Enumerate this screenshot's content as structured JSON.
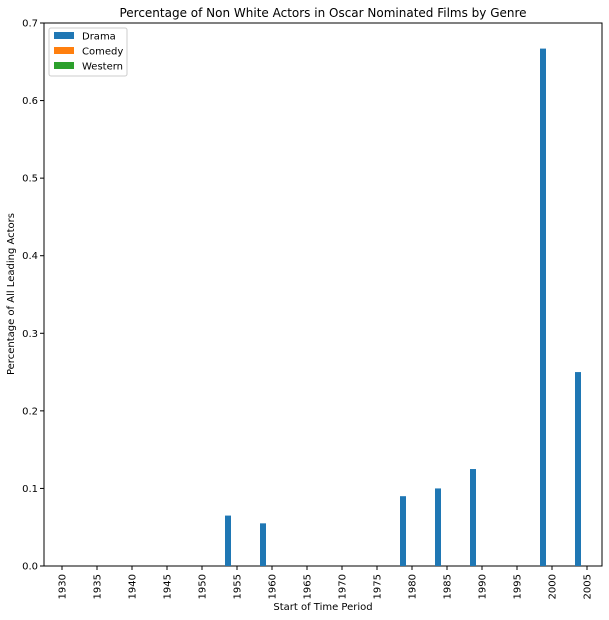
{
  "chart_data": {
    "type": "bar",
    "title": "Percentage of Non White Actors in Oscar Nominated Films by Genre",
    "xlabel": "Start of Time Period",
    "ylabel": "Percentage of All Leading Actors",
    "categories": [
      "1930",
      "1935",
      "1940",
      "1945",
      "1950",
      "1955",
      "1960",
      "1965",
      "1970",
      "1975",
      "1980",
      "1985",
      "1990",
      "1995",
      "2000",
      "2005"
    ],
    "ylim": [
      0,
      0.7
    ],
    "yticks": [
      "0.0",
      "0.1",
      "0.2",
      "0.3",
      "0.4",
      "0.5",
      "0.6",
      "0.7"
    ],
    "grid": false,
    "legend_position": "top-left",
    "series": [
      {
        "name": "Drama",
        "color": "#1f77b4",
        "values": [
          0,
          0,
          0,
          0,
          0,
          0.065,
          0.055,
          0,
          0,
          0,
          0.09,
          0.1,
          0.125,
          0,
          0.667,
          0.25
        ]
      },
      {
        "name": "Comedy",
        "color": "#ff7f0e",
        "values": [
          0,
          0,
          0,
          0,
          0,
          0,
          0,
          0,
          0,
          0,
          0,
          0,
          0,
          0,
          0,
          0
        ]
      },
      {
        "name": "Western",
        "color": "#2ca02c",
        "values": [
          0,
          0,
          0,
          0,
          0,
          0,
          0,
          0,
          0,
          0,
          0,
          0,
          0,
          0,
          0,
          0
        ]
      }
    ]
  }
}
